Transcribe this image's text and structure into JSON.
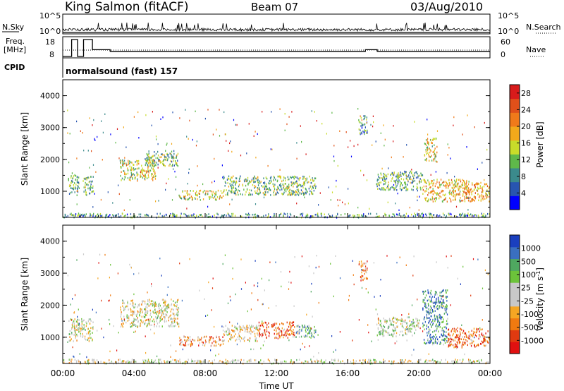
{
  "header": {
    "station": "King Salmon (fitACF)",
    "beam": "Beam 07",
    "date": "03/Aug/2010"
  },
  "summary_labels": {
    "nsky": "N.Sky",
    "freq_line1": "Freq.",
    "freq_line2": "[MHz]",
    "cpid": "CPID",
    "nsearch": "N.Search",
    "nave": "Nave",
    "nsky_ticks": [
      "10^5",
      "10^0"
    ],
    "freq_ticks": [
      "18",
      "8"
    ],
    "nave_ticks": [
      "60",
      "0"
    ],
    "cpid_text": "normalsound (fast) 157"
  },
  "colors": {
    "power_scale": [
      "#0000ff",
      "#2855b0",
      "#3b8a8c",
      "#5fb84a",
      "#c8dc2a",
      "#f2a91b",
      "#f07a1a",
      "#e0501a",
      "#d81b1b"
    ],
    "velocity_scale": [
      "#1a3fbe",
      "#3a6fc0",
      "#4fa860",
      "#6cc33a",
      "#c8c8c8",
      "#c8c8c8",
      "#f5a623",
      "#f07a10",
      "#e03a10",
      "#e01010"
    ]
  },
  "chart_data": [
    {
      "type": "line",
      "panel": "summary",
      "series": [
        {
          "name": "N.Sky",
          "values": []
        },
        {
          "name": "N.Search",
          "values": []
        },
        {
          "name": "Freq.",
          "x": [
            "00:00",
            "00:30",
            "00:30",
            "00:50",
            "00:50",
            "01:10",
            "01:10",
            "01:40",
            "01:40",
            "02:40",
            "02:40",
            "17:00",
            "17:00",
            "17:40",
            "17:40",
            "24:00"
          ],
          "values": [
            8,
            8,
            18,
            18,
            8,
            8,
            18,
            18,
            12,
            12,
            11,
            11,
            12,
            12,
            11,
            11
          ]
        },
        {
          "name": "Nave",
          "values": []
        }
      ]
    },
    {
      "type": "heatmap",
      "panel": "power",
      "title": "",
      "xlabel": "",
      "ylabel": "Slant Range [km]",
      "ylim": [
        180,
        4500
      ],
      "yticks": [
        "1000",
        "2000",
        "3000",
        "4000"
      ],
      "colorbar_label": "Power [dB]",
      "colorbar_ticks": [
        "4",
        "8",
        "12",
        "16",
        "20",
        "24",
        "28"
      ],
      "colorbar_range": [
        0,
        30
      ],
      "blobs": [
        {
          "t0": 0.3,
          "t1": 0.9,
          "r0": 900,
          "r1": 1600,
          "level": 0.35
        },
        {
          "t0": 1.1,
          "t1": 1.7,
          "r0": 900,
          "r1": 1500,
          "level": 0.35
        },
        {
          "t0": 3.2,
          "t1": 5.2,
          "r0": 1350,
          "r1": 2000,
          "level": 0.5
        },
        {
          "t0": 4.6,
          "t1": 6.5,
          "r0": 1800,
          "r1": 2300,
          "level": 0.4
        },
        {
          "t0": 6.5,
          "t1": 9.0,
          "r0": 750,
          "r1": 1050,
          "level": 0.5
        },
        {
          "t0": 9.0,
          "t1": 14.2,
          "r0": 900,
          "r1": 1500,
          "level": 0.4
        },
        {
          "t0": 16.6,
          "t1": 17.1,
          "r0": 2800,
          "r1": 3400,
          "level": 0.3
        },
        {
          "t0": 17.6,
          "t1": 20.2,
          "r0": 1050,
          "r1": 1650,
          "level": 0.35
        },
        {
          "t0": 20.2,
          "t1": 22.8,
          "r0": 700,
          "r1": 1400,
          "level": 0.6
        },
        {
          "t0": 20.3,
          "t1": 21.0,
          "r0": 1900,
          "r1": 2700,
          "level": 0.55
        },
        {
          "t0": 22.5,
          "t1": 24.0,
          "r0": 700,
          "r1": 1300,
          "level": 0.65
        },
        {
          "t0": 0.0,
          "t1": 24.0,
          "r0": 200,
          "r1": 330,
          "level": 0.3
        }
      ]
    },
    {
      "type": "heatmap",
      "panel": "velocity",
      "title": "",
      "xlabel": "Time UT",
      "ylabel": "Slant Range [km]",
      "ylim": [
        180,
        4500
      ],
      "yticks": [
        "1000",
        "2000",
        "3000",
        "4000"
      ],
      "xticks": [
        "00:00",
        "04:00",
        "08:00",
        "12:00",
        "16:00",
        "20:00",
        "00:00"
      ],
      "colorbar_label": "Velocity [m s^-1]",
      "colorbar_ticks": [
        "1000",
        "500",
        "100",
        "25",
        "-25",
        "-100",
        "-500",
        "-1000"
      ],
      "blobs": [
        {
          "t0": 0.3,
          "t1": 1.7,
          "r0": 900,
          "r1": 1600,
          "level": 0.5
        },
        {
          "t0": 3.2,
          "t1": 6.5,
          "r0": 1350,
          "r1": 2200,
          "level": 0.5
        },
        {
          "t0": 6.5,
          "t1": 9.0,
          "r0": 750,
          "r1": 1050,
          "level": 0.72
        },
        {
          "t0": 9.0,
          "t1": 11.0,
          "r0": 900,
          "r1": 1400,
          "level": 0.55
        },
        {
          "t0": 11.0,
          "t1": 13.0,
          "r0": 1000,
          "r1": 1500,
          "level": 0.8
        },
        {
          "t0": 13.0,
          "t1": 14.2,
          "r0": 1000,
          "r1": 1400,
          "level": 0.3
        },
        {
          "t0": 16.6,
          "t1": 17.1,
          "r0": 2800,
          "r1": 3400,
          "level": 0.75
        },
        {
          "t0": 17.6,
          "t1": 20.0,
          "r0": 1050,
          "r1": 1650,
          "level": 0.45
        },
        {
          "t0": 20.2,
          "t1": 21.6,
          "r0": 800,
          "r1": 2500,
          "level": 0.2
        },
        {
          "t0": 21.6,
          "t1": 24.0,
          "r0": 700,
          "r1": 1300,
          "level": 0.78
        },
        {
          "t0": 0.0,
          "t1": 24.0,
          "r0": 200,
          "r1": 330,
          "level": 0.5
        }
      ]
    }
  ]
}
